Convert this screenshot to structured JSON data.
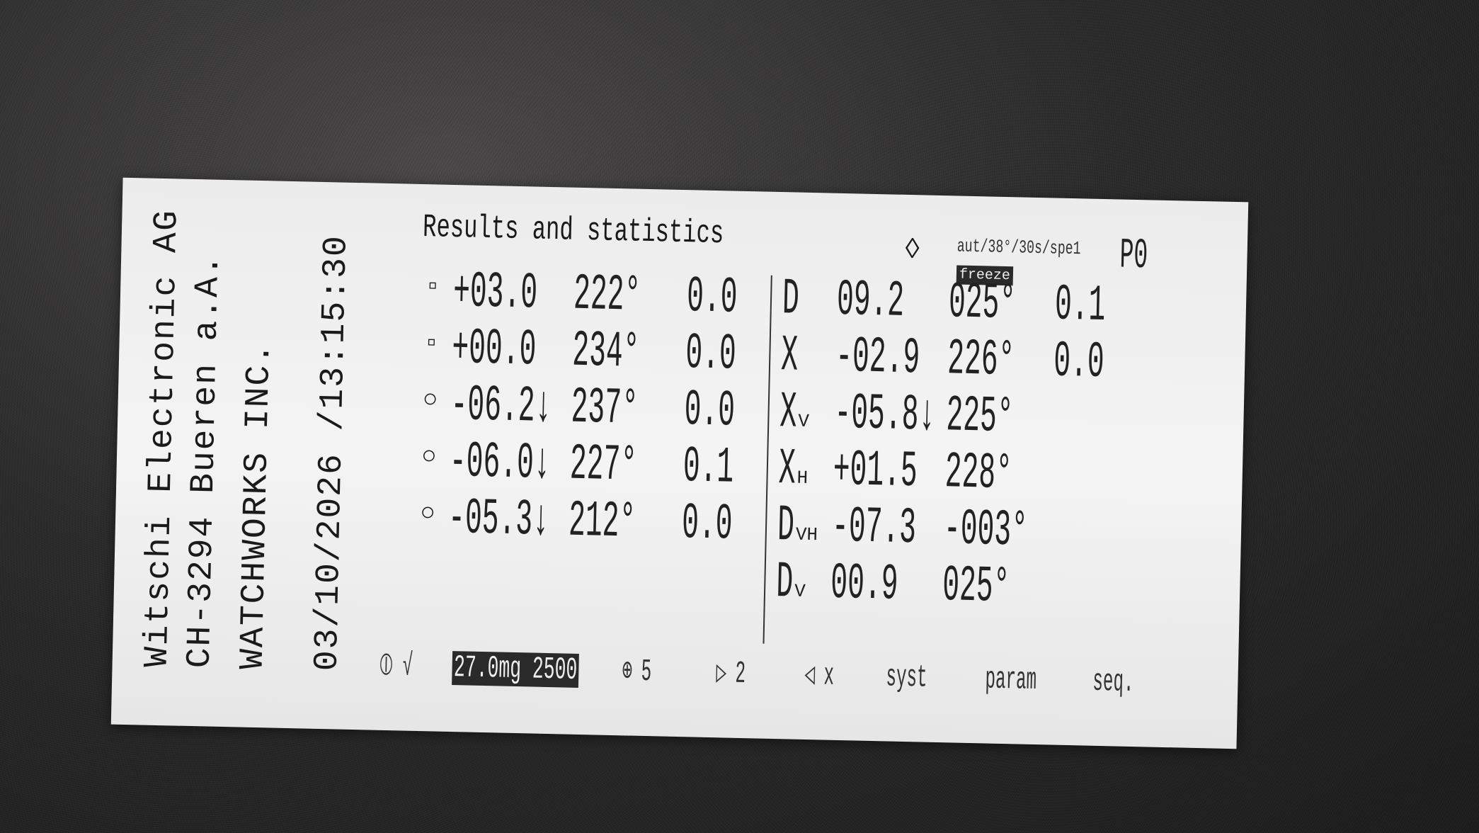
{
  "header": {
    "company": "Witschi Electronic AG",
    "address": "CH-3294 Bueren a.A.",
    "customer": "WATCHWORKS INC.",
    "datetime": "03/10/2026 /13:15:30"
  },
  "title": "Results and statistics",
  "status": {
    "mode": "aut/38°/30s/spe1",
    "freeze": "freeze",
    "program": "P0"
  },
  "positions": [
    {
      "icon": "dial-up",
      "rate": "+03.0",
      "amplitude": "222°",
      "beat_error": "0.0"
    },
    {
      "icon": "dial-down",
      "rate": "+00.0",
      "amplitude": "234°",
      "beat_error": "0.0"
    },
    {
      "icon": "crown-up",
      "rate": "-06.2↓",
      "amplitude": "237°",
      "beat_error": "0.0"
    },
    {
      "icon": "crown-left",
      "rate": "-06.0↓",
      "amplitude": "227°",
      "beat_error": "0.1"
    },
    {
      "icon": "crown-down",
      "rate": "-05.3↓",
      "amplitude": "212°",
      "beat_error": "0.0"
    }
  ],
  "statistics": [
    {
      "label": "D",
      "sub": "",
      "rate": "09.2",
      "amplitude": "025°",
      "beat_error": "0.1"
    },
    {
      "label": "X",
      "sub": "",
      "rate": "-02.9",
      "amplitude": "226°",
      "beat_error": "0.0"
    },
    {
      "label": "X",
      "sub": "V",
      "rate": "-05.8↓",
      "amplitude": "225°",
      "beat_error": ""
    },
    {
      "label": "X",
      "sub": "H",
      "rate": "+01.5",
      "amplitude": "228°",
      "beat_error": ""
    },
    {
      "label": "D",
      "sub": "VH",
      "rate": "-07.3",
      "amplitude": "-003°",
      "beat_error": ""
    },
    {
      "label": "D",
      "sub": "V",
      "rate": "00.9",
      "amplitude": "025°",
      "beat_error": ""
    }
  ],
  "footer": {
    "check": "√",
    "lift": "27.0mg 2500",
    "positions_count": "5",
    "run_count": "2",
    "sound": "x",
    "syst": "syst",
    "param": "param",
    "seq": "seq."
  }
}
